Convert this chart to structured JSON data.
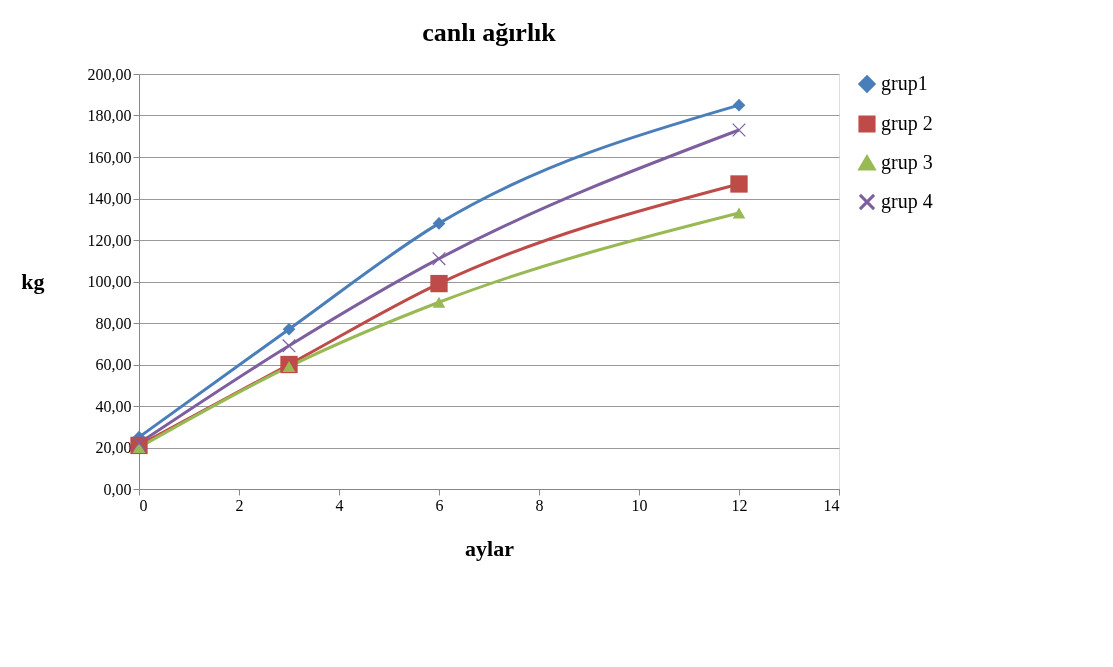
{
  "chart_data": {
    "type": "line",
    "title": "canlı ağırlık",
    "xlabel": "aylar",
    "ylabel": "kg",
    "x": [
      0,
      3,
      6,
      12
    ],
    "series": [
      {
        "name": "grup1",
        "color": "#4a7ebb",
        "marker": "diamond",
        "values": [
          25,
          77,
          128,
          185
        ]
      },
      {
        "name": "grup 2",
        "color": "#be4b48",
        "marker": "square",
        "values": [
          21,
          60,
          99,
          147
        ]
      },
      {
        "name": "grup 3",
        "color": "#98b954",
        "marker": "triangle",
        "values": [
          20,
          59,
          90,
          133
        ]
      },
      {
        "name": "grup 4",
        "color": "#7d5fa0",
        "marker": "cross",
        "values": [
          22,
          69,
          111,
          173
        ]
      }
    ],
    "xlim": [
      0,
      14
    ],
    "xticks": [
      0,
      2,
      4,
      6,
      8,
      10,
      12,
      14
    ],
    "ylim": [
      0,
      200
    ],
    "yticks": [
      {
        "value": 0,
        "label": "0,00"
      },
      {
        "value": 20,
        "label": "20,00"
      },
      {
        "value": 40,
        "label": "40,00"
      },
      {
        "value": 60,
        "label": "60,00"
      },
      {
        "value": 80,
        "label": "80,00"
      },
      {
        "value": 100,
        "label": "100,00"
      },
      {
        "value": 120,
        "label": "120,00"
      },
      {
        "value": 140,
        "label": "140,00"
      },
      {
        "value": 160,
        "label": "160,00"
      },
      {
        "value": 180,
        "label": "180,00"
      },
      {
        "value": 200,
        "label": "200,00"
      }
    ],
    "grid": "y",
    "legend": "right",
    "line_style": "solid"
  }
}
